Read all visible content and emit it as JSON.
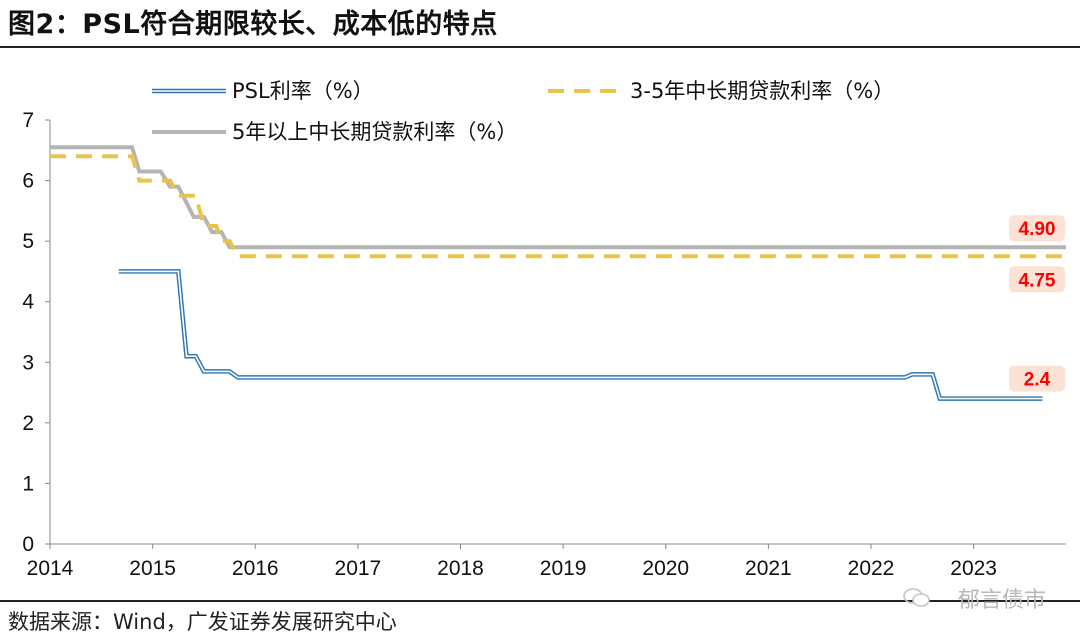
{
  "figure_title": "图2：PSL符合期限较长、成本低的特点",
  "source_text": "数据来源：Wind，广发证券发展研究中心",
  "watermark_text": "郁言债市",
  "colors": {
    "psl": "#2e75b6",
    "loan_3_5y": "#e8c54a",
    "loan_5y_plus": "#b4b4b4",
    "label_text": "#ff0000",
    "label_bg": "#fbe2d5"
  },
  "chart_data": {
    "type": "line",
    "xlim": [
      2014,
      2023.9
    ],
    "ylim": [
      0,
      7
    ],
    "x_ticks": [
      "2014",
      "2015",
      "2016",
      "2017",
      "2018",
      "2019",
      "2020",
      "2021",
      "2022",
      "2023"
    ],
    "y_ticks": [
      "0",
      "1",
      "2",
      "3",
      "4",
      "5",
      "6",
      "7"
    ],
    "grid": false,
    "legend_position": "top",
    "series": [
      {
        "name": "PSL利率（%）",
        "style": "double-line",
        "points": [
          [
            2014.67,
            4.5
          ],
          [
            2015.25,
            4.5
          ],
          [
            2015.33,
            3.1
          ],
          [
            2015.42,
            3.1
          ],
          [
            2015.5,
            2.85
          ],
          [
            2015.75,
            2.85
          ],
          [
            2015.83,
            2.75
          ],
          [
            2022.33,
            2.75
          ],
          [
            2022.4,
            2.8
          ],
          [
            2022.6,
            2.8
          ],
          [
            2022.67,
            2.4
          ],
          [
            2023.67,
            2.4
          ]
        ],
        "end_label": "2.4"
      },
      {
        "name": "3-5年中长期贷款利率（%）",
        "style": "dashed",
        "points": [
          [
            2014.0,
            6.4
          ],
          [
            2014.8,
            6.4
          ],
          [
            2014.87,
            6.0
          ],
          [
            2015.17,
            6.0
          ],
          [
            2015.25,
            5.75
          ],
          [
            2015.42,
            5.75
          ],
          [
            2015.5,
            5.25
          ],
          [
            2015.62,
            5.25
          ],
          [
            2015.67,
            5.0
          ],
          [
            2015.75,
            5.0
          ],
          [
            2015.83,
            4.75
          ],
          [
            2023.9,
            4.75
          ]
        ],
        "end_label": "4.75"
      },
      {
        "name": "5年以上中长期贷款利率（%）",
        "style": "solid",
        "points": [
          [
            2014.0,
            6.55
          ],
          [
            2014.8,
            6.55
          ],
          [
            2014.87,
            6.15
          ],
          [
            2015.08,
            6.15
          ],
          [
            2015.17,
            5.9
          ],
          [
            2015.25,
            5.9
          ],
          [
            2015.4,
            5.4
          ],
          [
            2015.5,
            5.4
          ],
          [
            2015.58,
            5.15
          ],
          [
            2015.67,
            5.15
          ],
          [
            2015.75,
            4.9
          ],
          [
            2023.9,
            4.9
          ]
        ],
        "end_label": "4.90"
      }
    ]
  }
}
